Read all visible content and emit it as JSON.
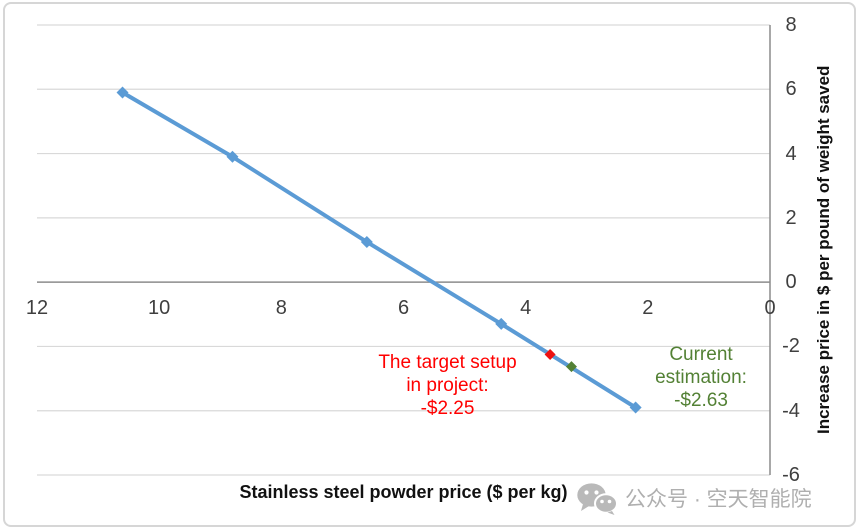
{
  "chart_data": {
    "type": "line",
    "series": [
      {
        "name": "price-line",
        "color": "#5b9bd5",
        "marker": "diamond",
        "points": [
          [
            10.6,
            5.9
          ],
          [
            8.8,
            3.9
          ],
          [
            6.6,
            1.25
          ],
          [
            4.4,
            -1.3
          ],
          [
            2.2,
            -3.9
          ]
        ]
      }
    ],
    "special_points": [
      {
        "name": "target-setup-point",
        "x": 3.6,
        "y": -2.25,
        "color": "#ee1111"
      },
      {
        "name": "current-estimation-point",
        "x": 3.25,
        "y": -2.63,
        "color": "#538135"
      }
    ],
    "xlabel": "Stainless steel powder price ($ per kg)",
    "ylabel": "Increase price in $ per pound of weight saved",
    "x_ticks": [
      12,
      10,
      8,
      6,
      4,
      2,
      0
    ],
    "y_ticks": [
      8,
      6,
      4,
      2,
      0,
      -2,
      -4,
      -6
    ],
    "xlim": [
      12,
      0
    ],
    "ylim": [
      -6,
      8
    ],
    "x_axis_reversed": true,
    "grid": true,
    "gridline_color": "#d9d9d9",
    "axis_line_color": "#8c8c8c"
  },
  "annotations": {
    "target": {
      "line1": "The target setup",
      "line2": "in project:",
      "line3": "-$2.25",
      "color": "#ff0000"
    },
    "current": {
      "line1": "Current",
      "line2": "estimation:",
      "line3": "-$2.63",
      "color": "#538135"
    }
  },
  "watermark": {
    "icon": "wechat-icon",
    "text": "公众号 · 空天智能院"
  }
}
